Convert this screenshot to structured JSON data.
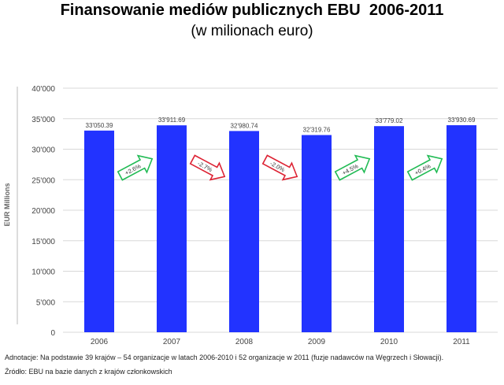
{
  "chart_data": {
    "type": "bar",
    "title": "Finansowanie mediów publicznych EBU  2006-2011",
    "subtitle": "(w milionach euro)",
    "ylabel": "EUR Millions",
    "xlabel": "",
    "categories": [
      "2006",
      "2007",
      "2008",
      "2009",
      "2010",
      "2011"
    ],
    "values": [
      33050.39,
      33911.69,
      32980.74,
      32319.76,
      33779.02,
      33930.69
    ],
    "value_labels": [
      "33'050.39",
      "33'911.69",
      "32'980.74",
      "32'319.76",
      "33'779.02",
      "33'930.69"
    ],
    "ylim": [
      0,
      40000
    ],
    "yticks": [
      0,
      5000,
      10000,
      15000,
      20000,
      25000,
      30000,
      35000,
      40000
    ],
    "ytick_labels": [
      "0",
      "5'000",
      "10'000",
      "15'000",
      "20'000",
      "25'000",
      "30'000",
      "35'000",
      "40'000"
    ],
    "grid": true,
    "bar_color": "#2233ff",
    "changes": [
      {
        "label": "+2.6%",
        "direction": "up",
        "color": "#22bb55"
      },
      {
        "label": "-2.7%",
        "direction": "down",
        "color": "#dd2233"
      },
      {
        "label": "-2.0%",
        "direction": "down",
        "color": "#dd2233"
      },
      {
        "label": "+4.5%",
        "direction": "up",
        "color": "#22bb55"
      },
      {
        "label": "+0.4%",
        "direction": "up",
        "color": "#22bb55"
      }
    ]
  },
  "footnotes": {
    "annotation": "Adnotacje: Na podstawie 39 krajów – 54 organizacje w latach 2006-2010 i 52 organizacje w 2011 (fuzje nadawców na Węgrzech i Słowacji).",
    "source": "Źródło: EBU na bazie danych z krajów członkowskich"
  }
}
